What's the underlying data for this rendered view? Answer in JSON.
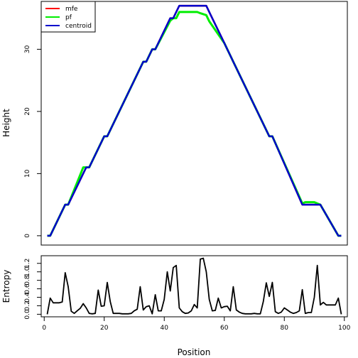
{
  "chart_data": [
    {
      "type": "line",
      "ylabel": "Height",
      "xlim": [
        -1,
        101
      ],
      "ylim": [
        0,
        37
      ],
      "x_ticks": [
        0,
        20,
        40,
        60,
        80,
        100
      ],
      "y_ticks": [
        0,
        10,
        20,
        30
      ],
      "y_tick_labels": [
        "0",
        "10",
        "20",
        "30"
      ],
      "legend": {
        "position": "top-left",
        "entries": [
          "mfe",
          "pf",
          "centroid"
        ]
      },
      "colors": {
        "mfe": "#ff0000",
        "pf": "#00ee00",
        "centroid": "#0000cc"
      },
      "series": [
        {
          "name": "mfe",
          "x": [
            1,
            2,
            7,
            8,
            14,
            15,
            20,
            21,
            33,
            34,
            36,
            37,
            42,
            43,
            45,
            46,
            54,
            55,
            60,
            61,
            62,
            63,
            75,
            76,
            86,
            92,
            98,
            99
          ],
          "y": [
            0,
            0,
            5,
            5,
            11,
            11,
            16,
            16,
            28,
            28,
            30,
            30,
            35,
            35,
            37,
            37,
            37,
            36,
            31,
            30,
            29,
            28,
            16,
            16,
            5,
            5,
            0,
            0
          ]
        },
        {
          "name": "pf",
          "x": [
            1,
            2,
            7,
            8,
            13,
            15,
            20,
            21,
            33,
            34,
            36,
            37,
            42,
            43,
            44,
            45,
            46,
            51,
            52,
            54,
            55,
            60,
            61,
            62,
            63,
            75,
            76,
            86,
            87,
            90,
            91,
            92,
            98,
            99
          ],
          "y": [
            0,
            0,
            5,
            5,
            11,
            11,
            16,
            16,
            28,
            28,
            30,
            30,
            34.6,
            35,
            35,
            36,
            36,
            36,
            35.8,
            35.5,
            34.5,
            31,
            30,
            29,
            28,
            16,
            16,
            5.2,
            5.4,
            5.4,
            5.2,
            5,
            0,
            0
          ]
        },
        {
          "name": "centroid",
          "x": [
            1,
            2,
            7,
            8,
            14,
            15,
            20,
            21,
            33,
            34,
            36,
            37,
            42,
            43,
            45,
            46,
            52,
            53,
            54,
            55,
            60,
            61,
            62,
            63,
            75,
            76,
            86,
            92,
            98,
            99
          ],
          "y": [
            0,
            0,
            5,
            5,
            11,
            11,
            16,
            16,
            28,
            28,
            30,
            30,
            35,
            35,
            37,
            37,
            37,
            37,
            37,
            36,
            31,
            30,
            29,
            28,
            16,
            16,
            5,
            5,
            0,
            0
          ]
        }
      ]
    },
    {
      "type": "line",
      "xlabel": "Position",
      "ylabel": "Entropy",
      "xlim": [
        -1,
        101
      ],
      "ylim": [
        0,
        1.35
      ],
      "x_ticks": [
        0,
        20,
        40,
        60,
        80,
        100
      ],
      "x_tick_labels": [
        "0",
        "20",
        "40",
        "60",
        "80",
        "100"
      ],
      "y_ticks": [
        0,
        0.2,
        0.4,
        0.6,
        0.8,
        1.0,
        1.2
      ],
      "y_tick_labels": [
        "0.0",
        "0.2",
        "0.4",
        "0.6",
        "0.8",
        "1.0",
        "1.2"
      ],
      "series": [
        {
          "color": "#000000",
          "x": [
            1,
            2,
            3,
            4,
            5,
            6,
            7,
            8,
            9,
            10,
            11,
            12,
            13,
            14,
            15,
            16,
            17,
            18,
            19,
            20,
            21,
            22,
            23,
            24,
            25,
            26,
            27,
            28,
            29,
            30,
            31,
            32,
            33,
            34,
            35,
            36,
            37,
            38,
            39,
            40,
            41,
            42,
            43,
            44,
            45,
            46,
            47,
            48,
            49,
            50,
            51,
            52,
            53,
            54,
            55,
            56,
            57,
            58,
            59,
            60,
            61,
            62,
            63,
            64,
            65,
            66,
            67,
            68,
            69,
            70,
            71,
            72,
            73,
            74,
            75,
            76,
            77,
            78,
            79,
            80,
            81,
            82,
            83,
            84,
            85,
            86,
            87,
            88,
            89,
            90,
            91,
            92,
            93,
            94,
            95,
            96,
            97,
            98,
            99
          ],
          "y": [
            0.0,
            0.38,
            0.27,
            0.27,
            0.27,
            0.29,
            0.98,
            0.65,
            0.07,
            0.02,
            0.08,
            0.14,
            0.25,
            0.15,
            0.02,
            0.01,
            0.02,
            0.57,
            0.19,
            0.2,
            0.75,
            0.3,
            0.02,
            0.02,
            0.02,
            0.01,
            0.01,
            0.01,
            0.02,
            0.08,
            0.12,
            0.65,
            0.1,
            0.18,
            0.2,
            0.01,
            0.46,
            0.08,
            0.08,
            0.35,
            1.0,
            0.55,
            1.1,
            1.15,
            0.15,
            0.06,
            0.02,
            0.03,
            0.08,
            0.23,
            0.15,
            1.3,
            1.32,
            1.0,
            0.35,
            0.08,
            0.09,
            0.38,
            0.15,
            0.18,
            0.19,
            0.08,
            0.65,
            0.1,
            0.05,
            0.02,
            0.01,
            0.01,
            0.01,
            0.02,
            0.01,
            0.01,
            0.3,
            0.74,
            0.42,
            0.75,
            0.06,
            0.02,
            0.05,
            0.15,
            0.1,
            0.05,
            0.02,
            0.04,
            0.08,
            0.58,
            0.02,
            0.04,
            0.04,
            0.4,
            1.15,
            0.22,
            0.28,
            0.22,
            0.22,
            0.22,
            0.22,
            0.38,
            0.0
          ]
        }
      ]
    }
  ]
}
